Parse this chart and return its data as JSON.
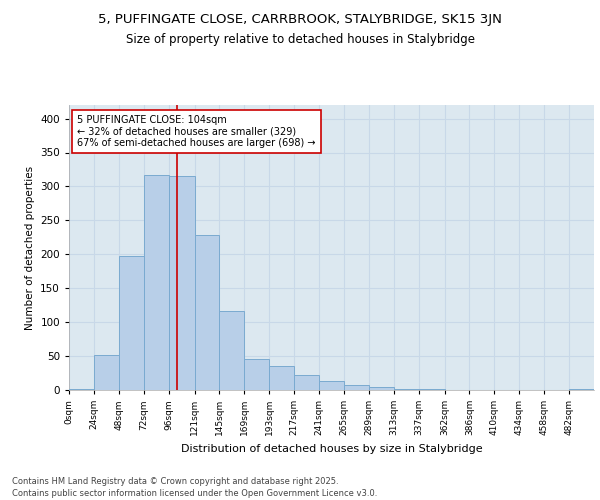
{
  "title1": "5, PUFFINGATE CLOSE, CARRBROOK, STALYBRIDGE, SK15 3JN",
  "title2": "Size of property relative to detached houses in Stalybridge",
  "xlabel": "Distribution of detached houses by size in Stalybridge",
  "ylabel": "Number of detached properties",
  "bins": [
    "0sqm",
    "24sqm",
    "48sqm",
    "72sqm",
    "96sqm",
    "121sqm",
    "145sqm",
    "169sqm",
    "193sqm",
    "217sqm",
    "241sqm",
    "265sqm",
    "289sqm",
    "313sqm",
    "337sqm",
    "362sqm",
    "386sqm",
    "410sqm",
    "434sqm",
    "458sqm",
    "482sqm"
  ],
  "bin_edges": [
    0,
    24,
    48,
    72,
    96,
    121,
    145,
    169,
    193,
    217,
    241,
    265,
    289,
    313,
    337,
    362,
    386,
    410,
    434,
    458,
    482,
    506
  ],
  "bar_heights": [
    2,
    51,
    197,
    317,
    316,
    228,
    117,
    45,
    35,
    22,
    14,
    8,
    4,
    2,
    1,
    0,
    0,
    0,
    0,
    0,
    2
  ],
  "bar_color": "#b8cfe8",
  "bar_edge_color": "#7aaad0",
  "vline_x": 104,
  "vline_color": "#cc0000",
  "annotation_text": "5 PUFFINGATE CLOSE: 104sqm\n← 32% of detached houses are smaller (329)\n67% of semi-detached houses are larger (698) →",
  "annotation_box_edgecolor": "#cc0000",
  "grid_color": "#c8d8e8",
  "bg_color": "#dce8f0",
  "fig_bg_color": "#ffffff",
  "footer": "Contains HM Land Registry data © Crown copyright and database right 2025.\nContains public sector information licensed under the Open Government Licence v3.0.",
  "ylim": [
    0,
    420
  ],
  "yticks": [
    0,
    50,
    100,
    150,
    200,
    250,
    300,
    350,
    400
  ]
}
